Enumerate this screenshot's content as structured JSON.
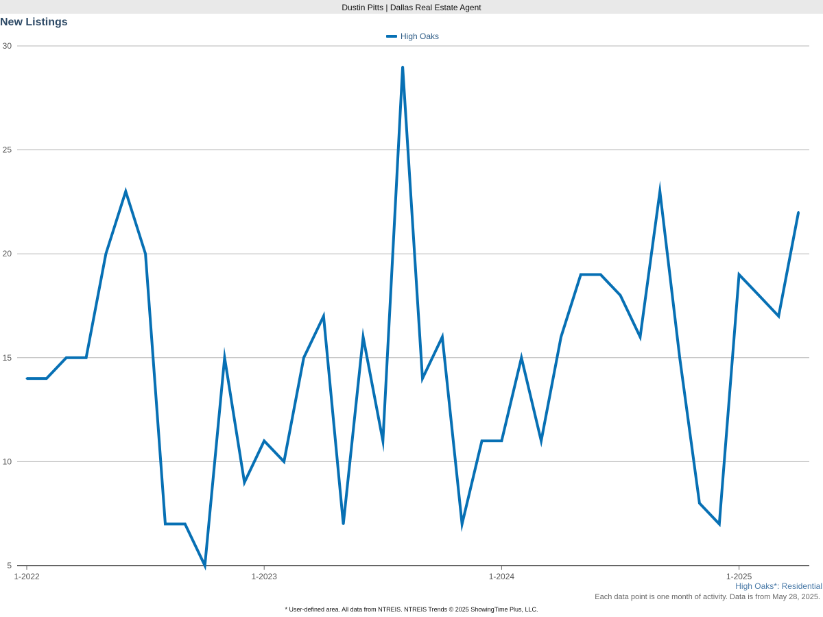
{
  "header": {
    "title": "Dustin Pitts | Dallas Real Estate Agent"
  },
  "chart": {
    "title": "New Listings",
    "area_label": "High Oaks*: Residential",
    "data_note": "Each data point is one month of activity. Data is from May 28, 2025.",
    "footer": "* User-defined area. All data from NTREIS. NTREIS Trends © 2025 ShowingTime Plus, LLC."
  },
  "colors": {
    "series": "#0770b4",
    "grid": "#b5b5b5",
    "axis": "#666666"
  },
  "chart_data": {
    "type": "line",
    "title": "New Listings",
    "xlabel": "",
    "ylabel": "",
    "ylim": [
      5,
      30
    ],
    "yticks": [
      5,
      10,
      15,
      20,
      25,
      30
    ],
    "grid": true,
    "legend_position": "top-center",
    "x": [
      "2022-01",
      "2022-02",
      "2022-03",
      "2022-04",
      "2022-05",
      "2022-06",
      "2022-07",
      "2022-08",
      "2022-09",
      "2022-10",
      "2022-11",
      "2022-12",
      "2023-01",
      "2023-02",
      "2023-03",
      "2023-04",
      "2023-05",
      "2023-06",
      "2023-07",
      "2023-08",
      "2023-09",
      "2023-10",
      "2023-11",
      "2023-12",
      "2024-01",
      "2024-02",
      "2024-03",
      "2024-04",
      "2024-05",
      "2024-06",
      "2024-07",
      "2024-08",
      "2024-09",
      "2024-10",
      "2024-11",
      "2024-12",
      "2025-01",
      "2025-02",
      "2025-03",
      "2025-04"
    ],
    "xtick_labels": [
      {
        "x": "2022-01",
        "label": "1-2022"
      },
      {
        "x": "2023-01",
        "label": "1-2023"
      },
      {
        "x": "2024-01",
        "label": "1-2024"
      },
      {
        "x": "2025-01",
        "label": "1-2025"
      }
    ],
    "series": [
      {
        "name": "High Oaks",
        "values": [
          14,
          14,
          15,
          15,
          20,
          23,
          20,
          7,
          7,
          5,
          15,
          9,
          11,
          10,
          15,
          17,
          7,
          16,
          11,
          29,
          14,
          16,
          7,
          11,
          11,
          15,
          11,
          16,
          19,
          19,
          18,
          16,
          23,
          15,
          8,
          7,
          19,
          18,
          17,
          22
        ]
      }
    ]
  }
}
